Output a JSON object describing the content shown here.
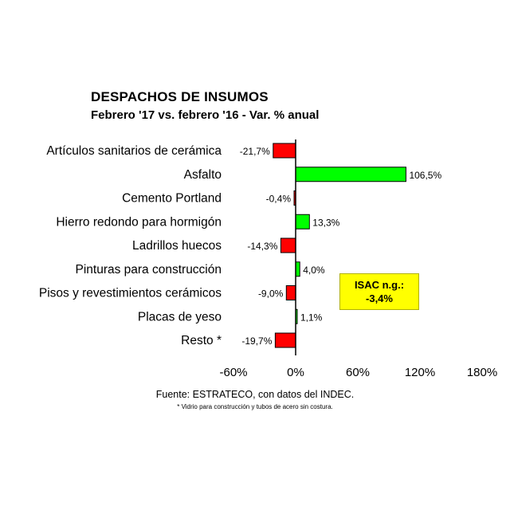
{
  "chart_data": {
    "type": "bar",
    "orientation": "horizontal",
    "title": "DESPACHOS DE INSUMOS",
    "subtitle": "Febrero '17 vs. febrero '16 - Var. % anual",
    "categories": [
      "Artículos sanitarios de cerámica",
      "Asfalto",
      "Cemento Portland",
      "Hierro redondo para hormigón",
      "Ladrillos huecos",
      "Pinturas para construcción",
      "Pisos y revestimientos cerámicos",
      "Placas de yeso",
      "Resto *"
    ],
    "values": [
      -21.7,
      106.5,
      -0.4,
      13.3,
      -14.3,
      4.0,
      -9.0,
      1.1,
      -19.7
    ],
    "value_labels": [
      "-21,7%",
      "106,5%",
      "-0,4%",
      "13,3%",
      "-14,3%",
      "4,0%",
      "-9,0%",
      "1,1%",
      "-19,7%"
    ],
    "xlim": [
      -60,
      180
    ],
    "x_ticks": [
      -60,
      0,
      60,
      120,
      180
    ],
    "x_tick_labels": [
      "-60%",
      "0%",
      "60%",
      "120%",
      "180%"
    ],
    "grid": false,
    "colors": {
      "positive": "#00ff00",
      "negative": "#ff0000",
      "outline": "#000000"
    }
  },
  "annotation": {
    "line1": "ISAC n.g.:",
    "line2": "-3,4%"
  },
  "source": "Fuente: ESTRATECO, con datos del INDEC.",
  "footnote": "* Vidrio para construcción y tubos de acero sin costura."
}
